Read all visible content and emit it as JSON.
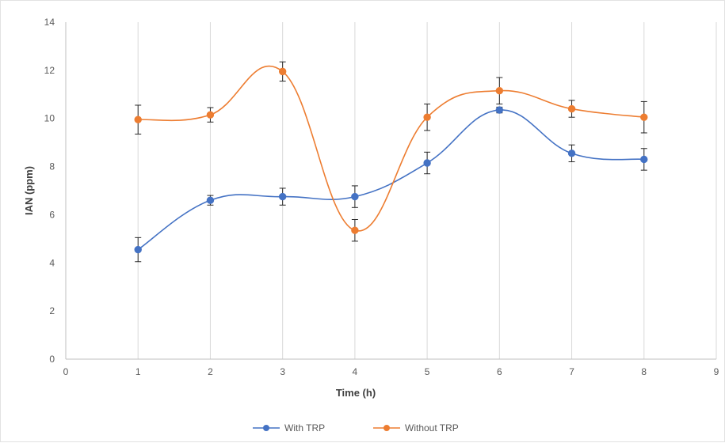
{
  "chart_data": {
    "type": "line",
    "title": "",
    "xlabel": "Time (h)",
    "ylabel": "IAN (ppm)",
    "xlim": [
      0,
      9
    ],
    "ylim": [
      0,
      14
    ],
    "x_ticks": [
      0,
      1,
      2,
      3,
      4,
      5,
      6,
      7,
      8,
      9
    ],
    "y_ticks": [
      0,
      2,
      4,
      6,
      8,
      10,
      12,
      14
    ],
    "grid": "vertical",
    "legend_position": "bottom",
    "smooth": true,
    "error_bars": true,
    "series": [
      {
        "name": "With TRP",
        "color": "#4472c4",
        "x": [
          1,
          2,
          3,
          4,
          5,
          6,
          7,
          8
        ],
        "values": [
          4.55,
          6.6,
          6.75,
          6.75,
          8.15,
          10.35,
          8.55,
          8.3
        ],
        "errors": [
          0.5,
          0.2,
          0.35,
          0.45,
          0.45,
          0.12,
          0.35,
          0.45
        ]
      },
      {
        "name": "Without TRP",
        "color": "#ed7d31",
        "x": [
          1,
          2,
          3,
          4,
          5,
          6,
          7,
          8
        ],
        "values": [
          9.95,
          10.15,
          11.95,
          5.35,
          10.05,
          11.15,
          10.4,
          10.05
        ],
        "errors": [
          0.6,
          0.3,
          0.4,
          0.45,
          0.55,
          0.55,
          0.35,
          0.65
        ]
      }
    ]
  }
}
